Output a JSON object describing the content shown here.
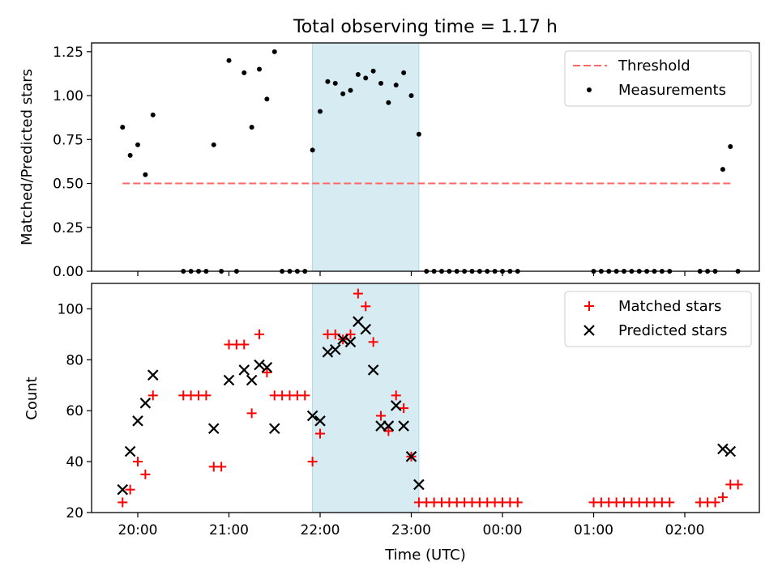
{
  "figure": {
    "title": "Total observing time = 1.17 h",
    "xlabel": "Time (UTC)",
    "xticks": [
      "20:00",
      "21:00",
      "22:00",
      "23:00",
      "00:00",
      "01:00",
      "02:00"
    ]
  },
  "colors": {
    "threshold": "#ff6666",
    "measurement": "#000000",
    "matched": "#ff0000",
    "predicted": "#000000",
    "span": "#add8e6"
  },
  "chart_data": [
    {
      "type": "scatter",
      "ylabel": "Matched/Predicted stars",
      "ylim": [
        0,
        1.3
      ],
      "yticks": [
        "0.00",
        "0.25",
        "0.50",
        "0.75",
        "1.00",
        "1.25"
      ],
      "legend": {
        "position": "top-right",
        "entries": [
          "Threshold",
          "Measurements"
        ]
      },
      "threshold": {
        "name": "Threshold",
        "y": 0.5,
        "x_start": "19:50",
        "x_end": "02:30"
      },
      "highlight_span": {
        "x_start": "21:55",
        "x_end": "23:05"
      },
      "series": [
        {
          "name": "Measurements",
          "points": [
            [
              "19:50",
              0.82
            ],
            [
              "19:55",
              0.66
            ],
            [
              "20:00",
              0.72
            ],
            [
              "20:05",
              0.55
            ],
            [
              "20:10",
              0.89
            ],
            [
              "20:30",
              0
            ],
            [
              "20:35",
              0
            ],
            [
              "20:40",
              0
            ],
            [
              "20:45",
              0
            ],
            [
              "20:50",
              0.72
            ],
            [
              "20:55",
              0
            ],
            [
              "21:00",
              1.2
            ],
            [
              "21:05",
              0
            ],
            [
              "21:10",
              1.13
            ],
            [
              "21:15",
              0.82
            ],
            [
              "21:20",
              1.15
            ],
            [
              "21:25",
              0.98
            ],
            [
              "21:30",
              1.25
            ],
            [
              "21:35",
              0
            ],
            [
              "21:40",
              0
            ],
            [
              "21:45",
              0
            ],
            [
              "21:50",
              0
            ],
            [
              "21:55",
              0.69
            ],
            [
              "22:00",
              0.91
            ],
            [
              "22:05",
              1.08
            ],
            [
              "22:10",
              1.07
            ],
            [
              "22:15",
              1.01
            ],
            [
              "22:20",
              1.03
            ],
            [
              "22:25",
              1.12
            ],
            [
              "22:30",
              1.1
            ],
            [
              "22:35",
              1.14
            ],
            [
              "22:40",
              1.07
            ],
            [
              "22:45",
              0.96
            ],
            [
              "22:50",
              1.06
            ],
            [
              "22:55",
              1.13
            ],
            [
              "23:00",
              1.0
            ],
            [
              "23:05",
              0.78
            ],
            [
              "23:10",
              0
            ],
            [
              "23:15",
              0
            ],
            [
              "23:20",
              0
            ],
            [
              "23:25",
              0
            ],
            [
              "23:30",
              0
            ],
            [
              "23:35",
              0
            ],
            [
              "23:40",
              0
            ],
            [
              "23:45",
              0
            ],
            [
              "23:50",
              0
            ],
            [
              "23:55",
              0
            ],
            [
              "00:00",
              0
            ],
            [
              "00:05",
              0
            ],
            [
              "00:10",
              0
            ],
            [
              "01:00",
              0
            ],
            [
              "01:05",
              0
            ],
            [
              "01:10",
              0
            ],
            [
              "01:15",
              0
            ],
            [
              "01:20",
              0
            ],
            [
              "01:25",
              0
            ],
            [
              "01:30",
              0
            ],
            [
              "01:35",
              0
            ],
            [
              "01:40",
              0
            ],
            [
              "01:45",
              0
            ],
            [
              "01:50",
              0
            ],
            [
              "02:10",
              0
            ],
            [
              "02:15",
              0
            ],
            [
              "02:20",
              0
            ],
            [
              "02:25",
              0.58
            ],
            [
              "02:30",
              0.71
            ],
            [
              "02:35",
              0
            ]
          ]
        }
      ]
    },
    {
      "type": "scatter",
      "ylabel": "Count",
      "ylim": [
        20,
        110
      ],
      "yticks": [
        "20",
        "40",
        "60",
        "80",
        "100"
      ],
      "legend": {
        "position": "top-right",
        "entries": [
          "Matched stars",
          "Predicted stars"
        ]
      },
      "highlight_span": {
        "x_start": "21:55",
        "x_end": "23:05"
      },
      "series": [
        {
          "name": "Matched stars",
          "marker": "+",
          "points": [
            [
              "19:50",
              24
            ],
            [
              "19:55",
              29
            ],
            [
              "20:00",
              40
            ],
            [
              "20:05",
              35
            ],
            [
              "20:10",
              66
            ],
            [
              "20:30",
              66
            ],
            [
              "20:35",
              66
            ],
            [
              "20:40",
              66
            ],
            [
              "20:45",
              66
            ],
            [
              "20:50",
              38
            ],
            [
              "20:55",
              38
            ],
            [
              "21:00",
              86
            ],
            [
              "21:05",
              86
            ],
            [
              "21:10",
              86
            ],
            [
              "21:15",
              59
            ],
            [
              "21:20",
              90
            ],
            [
              "21:25",
              75
            ],
            [
              "21:30",
              66
            ],
            [
              "21:35",
              66
            ],
            [
              "21:40",
              66
            ],
            [
              "21:45",
              66
            ],
            [
              "21:50",
              66
            ],
            [
              "21:55",
              40
            ],
            [
              "22:00",
              51
            ],
            [
              "22:05",
              90
            ],
            [
              "22:10",
              90
            ],
            [
              "22:15",
              88
            ],
            [
              "22:20",
              90
            ],
            [
              "22:25",
              106
            ],
            [
              "22:30",
              101
            ],
            [
              "22:35",
              87
            ],
            [
              "22:40",
              58
            ],
            [
              "22:45",
              52
            ],
            [
              "22:50",
              66
            ],
            [
              "22:55",
              61
            ],
            [
              "23:00",
              42
            ],
            [
              "23:05",
              24
            ],
            [
              "23:10",
              24
            ],
            [
              "23:15",
              24
            ],
            [
              "23:20",
              24
            ],
            [
              "23:25",
              24
            ],
            [
              "23:30",
              24
            ],
            [
              "23:35",
              24
            ],
            [
              "23:40",
              24
            ],
            [
              "23:45",
              24
            ],
            [
              "23:50",
              24
            ],
            [
              "23:55",
              24
            ],
            [
              "00:00",
              24
            ],
            [
              "00:05",
              24
            ],
            [
              "00:10",
              24
            ],
            [
              "01:00",
              24
            ],
            [
              "01:05",
              24
            ],
            [
              "01:10",
              24
            ],
            [
              "01:15",
              24
            ],
            [
              "01:20",
              24
            ],
            [
              "01:25",
              24
            ],
            [
              "01:30",
              24
            ],
            [
              "01:35",
              24
            ],
            [
              "01:40",
              24
            ],
            [
              "01:45",
              24
            ],
            [
              "01:50",
              24
            ],
            [
              "02:10",
              24
            ],
            [
              "02:15",
              24
            ],
            [
              "02:20",
              24
            ],
            [
              "02:25",
              26
            ],
            [
              "02:30",
              31
            ],
            [
              "02:35",
              31
            ]
          ]
        },
        {
          "name": "Predicted stars",
          "marker": "x",
          "points": [
            [
              "19:50",
              29
            ],
            [
              "19:55",
              44
            ],
            [
              "20:00",
              56
            ],
            [
              "20:05",
              63
            ],
            [
              "20:10",
              74
            ],
            [
              "20:50",
              53
            ],
            [
              "21:00",
              72
            ],
            [
              "21:10",
              76
            ],
            [
              "21:15",
              72
            ],
            [
              "21:20",
              78
            ],
            [
              "21:25",
              77
            ],
            [
              "21:30",
              53
            ],
            [
              "21:55",
              58
            ],
            [
              "22:00",
              56
            ],
            [
              "22:05",
              83
            ],
            [
              "22:10",
              84
            ],
            [
              "22:15",
              88
            ],
            [
              "22:20",
              87
            ],
            [
              "22:25",
              95
            ],
            [
              "22:30",
              92
            ],
            [
              "22:35",
              76
            ],
            [
              "22:40",
              54
            ],
            [
              "22:45",
              54
            ],
            [
              "22:50",
              62
            ],
            [
              "22:55",
              54
            ],
            [
              "23:00",
              42
            ],
            [
              "23:05",
              31
            ],
            [
              "02:25",
              45
            ],
            [
              "02:30",
              44
            ]
          ]
        }
      ]
    }
  ]
}
